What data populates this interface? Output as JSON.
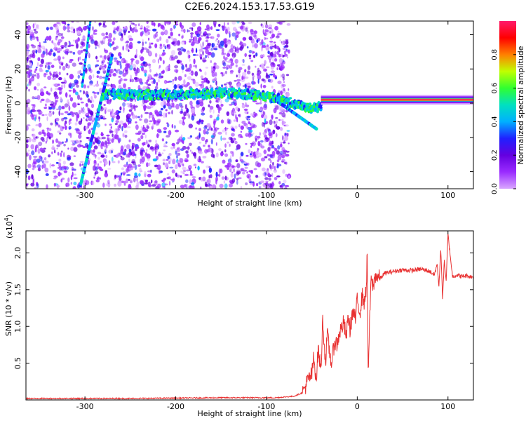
{
  "title": "C2E6.2024.153.17.53.G19",
  "colors": {
    "snr_line": "#e83030",
    "frame": "#000000"
  },
  "colormap": [
    "#d9a7ff",
    "#9a2bff",
    "#6400e0",
    "#2020ff",
    "#00b0ff",
    "#00e0c0",
    "#30ff30",
    "#c0ff00",
    "#ff8000",
    "#ff0000",
    "#ff1a6b"
  ],
  "chart_data": [
    {
      "type": "heatmap",
      "xlabel": "Height of straight line (km)",
      "ylabel": "Frequency (Hz)",
      "xlim": [
        -365,
        128
      ],
      "ylim": [
        -50,
        48
      ],
      "xticks": [
        -300,
        -200,
        -100,
        0,
        100
      ],
      "yticks": [
        -40,
        -20,
        0,
        20,
        40
      ],
      "colorbar": {
        "label": "Normalized spectral amplitude",
        "range": [
          0,
          1
        ],
        "ticks": [
          0.0,
          0.2,
          0.4,
          0.6,
          0.8
        ]
      },
      "features": {
        "noise_region_x": [
          -365,
          -75
        ],
        "streak_1": {
          "from": [
            -305,
            -48
          ],
          "to": [
            -270,
            28
          ]
        },
        "streak_2": {
          "from": [
            -303,
            10
          ],
          "to": [
            -294,
            48
          ]
        },
        "band_center_hz": 2,
        "band_points": [
          [
            -280,
            5
          ],
          [
            -200,
            5
          ],
          [
            -150,
            6
          ],
          [
            -110,
            5
          ],
          [
            -90,
            3
          ],
          [
            -70,
            0
          ],
          [
            -50,
            -3
          ],
          [
            -30,
            -1
          ],
          [
            0,
            1
          ],
          [
            40,
            1
          ],
          [
            80,
            1
          ],
          [
            128,
            2
          ]
        ],
        "saturated_band_x": [
          -40,
          128
        ],
        "lower_branch": {
          "from": [
            -85,
            0
          ],
          "to": [
            -45,
            -15
          ]
        }
      }
    },
    {
      "type": "line",
      "xlabel": "Height of straight line (km)",
      "ylabel": "SNR (10 * v/v)",
      "multiplier_label": "(x10",
      "multiplier_exp": "4",
      "xlim": [
        -365,
        128
      ],
      "ylim": [
        0,
        2.3
      ],
      "xticks": [
        -300,
        -200,
        -100,
        0,
        100
      ],
      "yticks": [
        0.5,
        1.0,
        1.5,
        2.0
      ],
      "series": [
        {
          "x": [
            -365,
            -250,
            -150,
            -100,
            -90,
            -80,
            -70,
            -60,
            -55,
            -50,
            -48,
            -45,
            -43,
            -40,
            -38,
            -35,
            -33,
            -30,
            -28,
            -25,
            -22,
            -20,
            -15,
            -12,
            -10,
            -8,
            -5,
            -2,
            0,
            3,
            6,
            8,
            10,
            11,
            12,
            15,
            18,
            20,
            25,
            30,
            40,
            50,
            60,
            70,
            80,
            85,
            88,
            90,
            92,
            94,
            96,
            98,
            100,
            105,
            110,
            115,
            120,
            128
          ],
          "y": [
            0.02,
            0.02,
            0.03,
            0.03,
            0.03,
            0.04,
            0.05,
            0.1,
            0.25,
            0.35,
            0.55,
            0.3,
            0.7,
            0.4,
            1.1,
            0.5,
            0.9,
            0.6,
            0.5,
            0.8,
            0.75,
            0.9,
            1.05,
            0.85,
            1.15,
            0.95,
            1.2,
            1.1,
            1.35,
            1.2,
            1.45,
            1.3,
            1.55,
            2.05,
            0.35,
            1.6,
            1.55,
            1.7,
            1.65,
            1.72,
            1.75,
            1.77,
            1.76,
            1.78,
            1.75,
            1.7,
            1.85,
            1.55,
            2.05,
            1.4,
            1.9,
            1.6,
            2.25,
            1.68,
            1.7,
            1.68,
            1.69,
            1.67
          ]
        }
      ]
    }
  ]
}
